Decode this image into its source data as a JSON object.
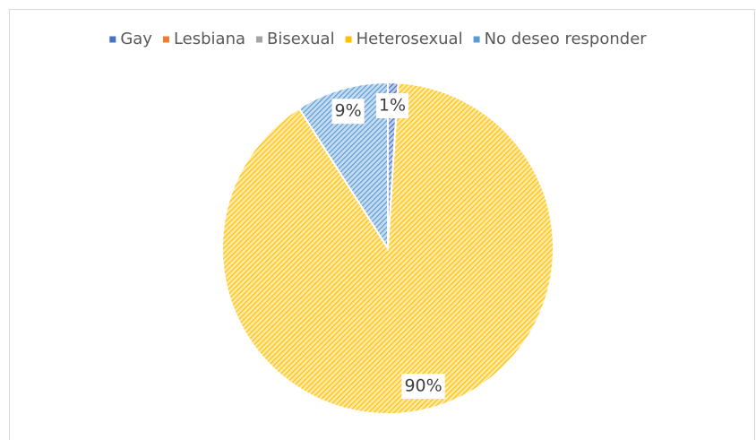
{
  "chart_data": {
    "type": "pie",
    "categories": [
      "Gay",
      "Lesbiana",
      "Bisexual",
      "Heterosexual",
      "No deseo responder"
    ],
    "values": [
      1,
      0,
      0,
      90,
      9
    ],
    "value_labels": [
      "1%",
      null,
      null,
      "90%",
      "9%"
    ],
    "colors": [
      "#4472c4",
      "#ed7d31",
      "#a5a5a5",
      "#ffc000",
      "#5b9bd5"
    ],
    "legend": "top"
  }
}
